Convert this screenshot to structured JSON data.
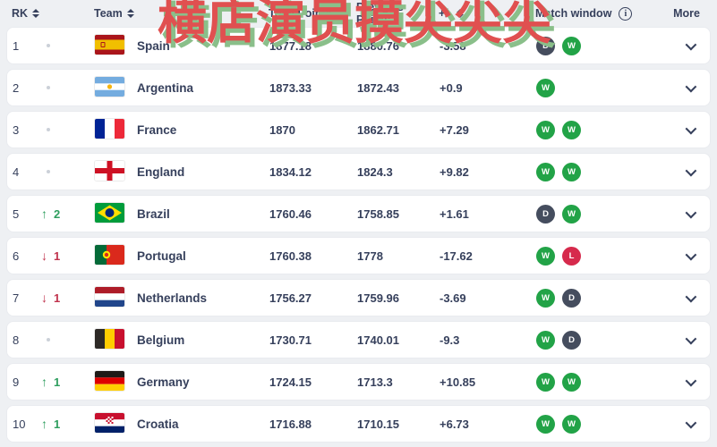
{
  "watermark": {
    "text": "横店演员摸尖尖尖"
  },
  "icons": {
    "sort_icon": "up-down-triangles",
    "info_icon": "i",
    "up_icon": "↑",
    "down_icon": "↓",
    "chevron_down_icon": "v",
    "no_change_icon": "dot"
  },
  "colors": {
    "background": "#eef0f3",
    "card": "#ffffff",
    "text_navy": "#36405c",
    "win_badge": "#22a347",
    "draw_badge": "#454d5e",
    "loss_badge": "#d62a4c",
    "up_green": "#2e9e5e",
    "down_red": "#c0334d",
    "watermark_red": "#e05050",
    "watermark_shadow_green": "#8abf8a"
  },
  "table": {
    "headers": {
      "rank": "RK",
      "team": "Team",
      "total_points": "Total Points",
      "previous_points": "Previous Points",
      "plus_minus": "+/-",
      "match_window": "Match window",
      "more": "More"
    },
    "rows": [
      {
        "rank": "1",
        "movement": {
          "dir": "same",
          "value": ""
        },
        "flag": "es",
        "team": "Spain",
        "total": "1877.18",
        "previous": "1880.76",
        "change": "-3.58",
        "results": [
          "D",
          "W"
        ]
      },
      {
        "rank": "2",
        "movement": {
          "dir": "same",
          "value": ""
        },
        "flag": "ar",
        "team": "Argentina",
        "total": "1873.33",
        "previous": "1872.43",
        "change": "+0.9",
        "results": [
          "W"
        ]
      },
      {
        "rank": "3",
        "movement": {
          "dir": "same",
          "value": ""
        },
        "flag": "fr",
        "team": "France",
        "total": "1870",
        "previous": "1862.71",
        "change": "+7.29",
        "results": [
          "W",
          "W"
        ]
      },
      {
        "rank": "4",
        "movement": {
          "dir": "same",
          "value": ""
        },
        "flag": "gb-eng",
        "team": "England",
        "total": "1834.12",
        "previous": "1824.3",
        "change": "+9.82",
        "results": [
          "W",
          "W"
        ]
      },
      {
        "rank": "5",
        "movement": {
          "dir": "up",
          "value": "2"
        },
        "flag": "br",
        "team": "Brazil",
        "total": "1760.46",
        "previous": "1758.85",
        "change": "+1.61",
        "results": [
          "D",
          "W"
        ]
      },
      {
        "rank": "6",
        "movement": {
          "dir": "down",
          "value": "1"
        },
        "flag": "pt",
        "team": "Portugal",
        "total": "1760.38",
        "previous": "1778",
        "change": "-17.62",
        "results": [
          "W",
          "L"
        ]
      },
      {
        "rank": "7",
        "movement": {
          "dir": "down",
          "value": "1"
        },
        "flag": "nl",
        "team": "Netherlands",
        "total": "1756.27",
        "previous": "1759.96",
        "change": "-3.69",
        "results": [
          "W",
          "D"
        ]
      },
      {
        "rank": "8",
        "movement": {
          "dir": "same",
          "value": ""
        },
        "flag": "be",
        "team": "Belgium",
        "total": "1730.71",
        "previous": "1740.01",
        "change": "-9.3",
        "results": [
          "W",
          "D"
        ]
      },
      {
        "rank": "9",
        "movement": {
          "dir": "up",
          "value": "1"
        },
        "flag": "de",
        "team": "Germany",
        "total": "1724.15",
        "previous": "1713.3",
        "change": "+10.85",
        "results": [
          "W",
          "W"
        ]
      },
      {
        "rank": "10",
        "movement": {
          "dir": "up",
          "value": "1"
        },
        "flag": "hr",
        "team": "Croatia",
        "total": "1716.88",
        "previous": "1710.15",
        "change": "+6.73",
        "results": [
          "W",
          "W"
        ]
      }
    ]
  }
}
